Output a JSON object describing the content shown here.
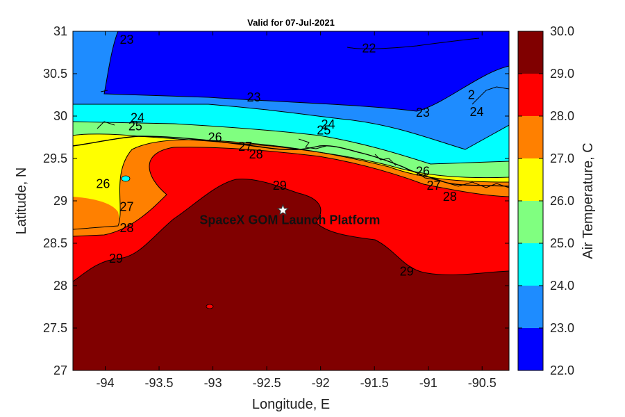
{
  "title": "Valid for 07-Jul-2021",
  "xlabel": "Longitude, E",
  "ylabel": "Latitude, N",
  "colorbar_label": "Air Temperature, C",
  "annotation": "SpaceX GOM Launch Platform",
  "marker": {
    "lon": -92.35,
    "lat": 28.89,
    "symbol": "white-star"
  },
  "x_ticks": [
    "-94",
    "-93.5",
    "-93",
    "-92.5",
    "-92",
    "-91.5",
    "-91",
    "-90.5"
  ],
  "y_ticks": [
    "31",
    "30.5",
    "30",
    "29.5",
    "29",
    "28.5",
    "28",
    "27.5",
    "27"
  ],
  "colorbar_ticks": [
    "30.0",
    "29.0",
    "28.0",
    "27.0",
    "26.0",
    "25.0",
    "24.0",
    "23.0",
    "22.0"
  ],
  "colors": {
    "22-23": "#0000ff",
    "23-24": "#1e8cff",
    "24-25": "#00ffff",
    "25-26": "#80ff80",
    "26-27": "#ffff00",
    "27-28": "#ff8000",
    "28-29": "#ff0000",
    "29-30": "#800000"
  },
  "contour_labels": [
    {
      "text": "23",
      "lon": -93.8,
      "lat": 30.9
    },
    {
      "text": "22",
      "lon": -91.55,
      "lat": 30.8
    },
    {
      "text": "23",
      "lon": -92.62,
      "lat": 30.22
    },
    {
      "text": "23",
      "lon": -91.05,
      "lat": 30.04
    },
    {
      "text": "24",
      "lon": -93.7,
      "lat": 29.98
    },
    {
      "text": "25",
      "lon": -93.72,
      "lat": 29.88
    },
    {
      "text": "24",
      "lon": -91.93,
      "lat": 29.9
    },
    {
      "text": "25",
      "lon": -91.97,
      "lat": 29.83
    },
    {
      "text": "26",
      "lon": -92.98,
      "lat": 29.75
    },
    {
      "text": "27",
      "lon": -92.7,
      "lat": 29.64
    },
    {
      "text": "28",
      "lon": -92.6,
      "lat": 29.55
    },
    {
      "text": "26",
      "lon": -94.02,
      "lat": 29.2
    },
    {
      "text": "29",
      "lon": -92.38,
      "lat": 29.18
    },
    {
      "text": "26",
      "lon": -91.05,
      "lat": 29.35
    },
    {
      "text": "27",
      "lon": -90.95,
      "lat": 29.18
    },
    {
      "text": "28",
      "lon": -90.8,
      "lat": 29.05
    },
    {
      "text": "27",
      "lon": -93.8,
      "lat": 28.93
    },
    {
      "text": "28",
      "lon": -93.8,
      "lat": 28.68
    },
    {
      "text": "29",
      "lon": -93.9,
      "lat": 28.32
    },
    {
      "text": "29",
      "lon": -91.2,
      "lat": 28.17
    },
    {
      "text": "2",
      "lon": -90.6,
      "lat": 30.25
    },
    {
      "text": "24",
      "lon": -90.55,
      "lat": 30.05
    }
  ]
}
